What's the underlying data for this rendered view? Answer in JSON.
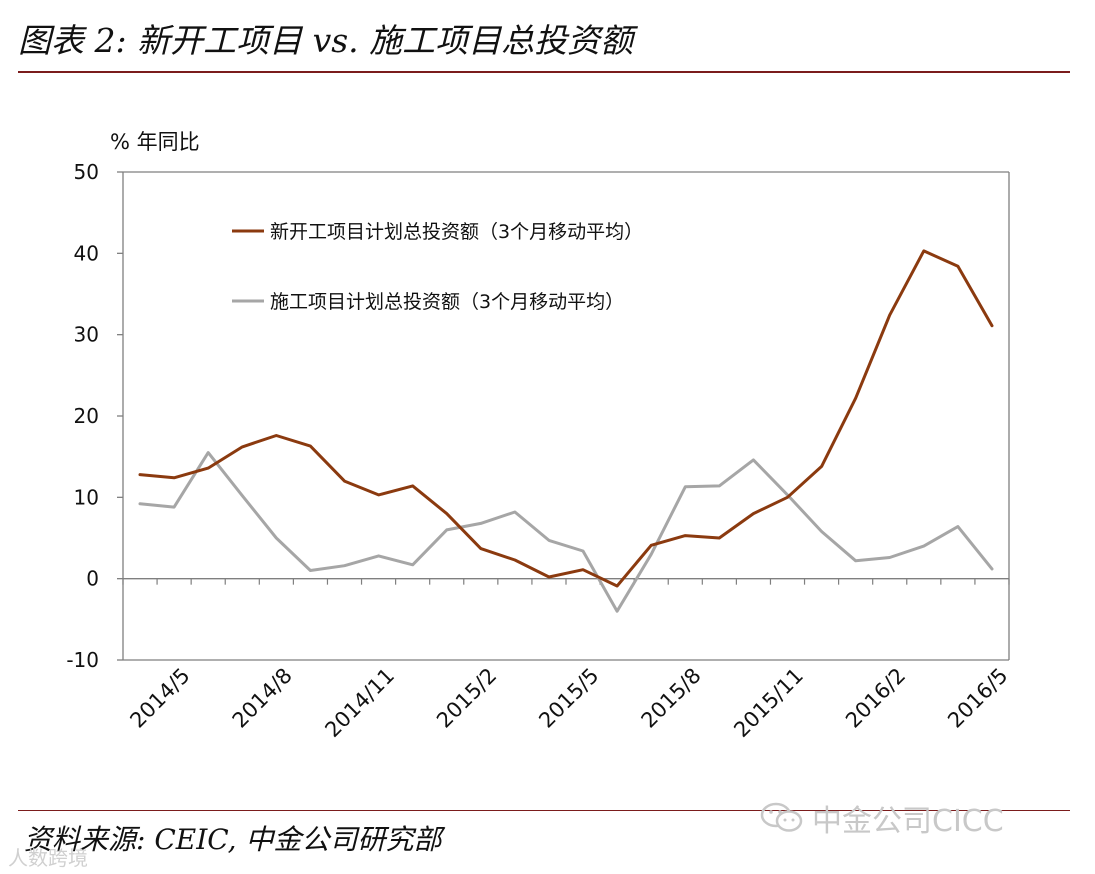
{
  "figure": {
    "title": "图表 2:  新开工项目 vs.  施工项目总投资额",
    "source": "资料来源:  CEIC, 中金公司研究部",
    "watermark": "中金公司CICC",
    "watermark2": "人数跨境",
    "accent_color": "#7b1c1c"
  },
  "chart_data": {
    "type": "line",
    "ylabel": "% 年同比",
    "ylim": [
      -10,
      50
    ],
    "yticks": [
      -10,
      0,
      10,
      20,
      30,
      40,
      50
    ],
    "x": [
      "2014/4",
      "2014/5",
      "2014/6",
      "2014/7",
      "2014/8",
      "2014/9",
      "2014/10",
      "2014/11",
      "2014/12",
      "2015/1",
      "2015/2",
      "2015/3",
      "2015/4",
      "2015/5",
      "2015/6",
      "2015/7",
      "2015/8",
      "2015/9",
      "2015/10",
      "2015/11",
      "2015/12",
      "2016/1",
      "2016/2",
      "2016/3",
      "2016/4",
      "2016/5"
    ],
    "xtick_labels": [
      "2014/5",
      "2014/8",
      "2014/11",
      "2015/2",
      "2015/5",
      "2015/8",
      "2015/11",
      "2016/2",
      "2016/5"
    ],
    "legend_position": "top-left",
    "grid": false,
    "series": [
      {
        "name": "新开工项目计划总投资额（3个月移动平均）",
        "color": "#8b3a0f",
        "values": [
          12.8,
          12.4,
          13.6,
          16.2,
          17.6,
          16.3,
          12.0,
          10.3,
          11.4,
          8.0,
          3.7,
          2.3,
          0.2,
          1.1,
          -0.9,
          4.1,
          5.3,
          5.0,
          8.0,
          10.0,
          13.8,
          22.2,
          32.4,
          40.3,
          38.4,
          31.1
        ]
      },
      {
        "name": "施工项目计划总投资额（3个月移动平均）",
        "color": "#a6a6a6",
        "values": [
          9.2,
          8.8,
          15.5,
          10.2,
          5.0,
          1.0,
          1.6,
          2.8,
          1.7,
          6.0,
          6.8,
          8.2,
          4.7,
          3.4,
          -4.0,
          3.0,
          11.3,
          11.4,
          14.6,
          10.3,
          5.8,
          2.2,
          2.6,
          4.0,
          6.4,
          1.2
        ]
      }
    ]
  }
}
